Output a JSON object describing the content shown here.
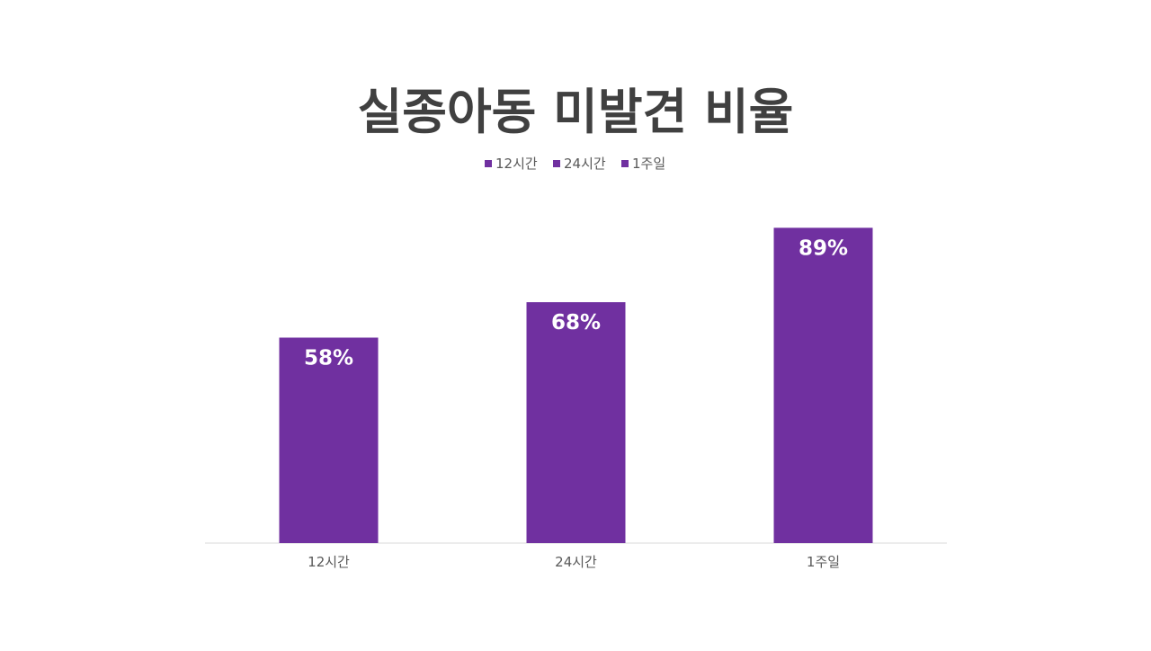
{
  "chart_data": {
    "type": "bar",
    "title": "실종아동 미발견 비율",
    "categories": [
      "12시간",
      "24시간",
      "1주일"
    ],
    "values": [
      58,
      68,
      89
    ],
    "data_labels": [
      "58%",
      "68%",
      "89%"
    ],
    "legend": [
      "12시간",
      "24시간",
      "1주일"
    ],
    "legend_position": "top",
    "ylim": [
      0,
      100
    ],
    "grid": false,
    "xlabel": "",
    "ylabel": "",
    "colors": {
      "bar": "#7030a0",
      "title": "#404040",
      "axis_text": "#595959",
      "data_label": "#ffffff",
      "baseline": "#d9d9d9"
    }
  }
}
